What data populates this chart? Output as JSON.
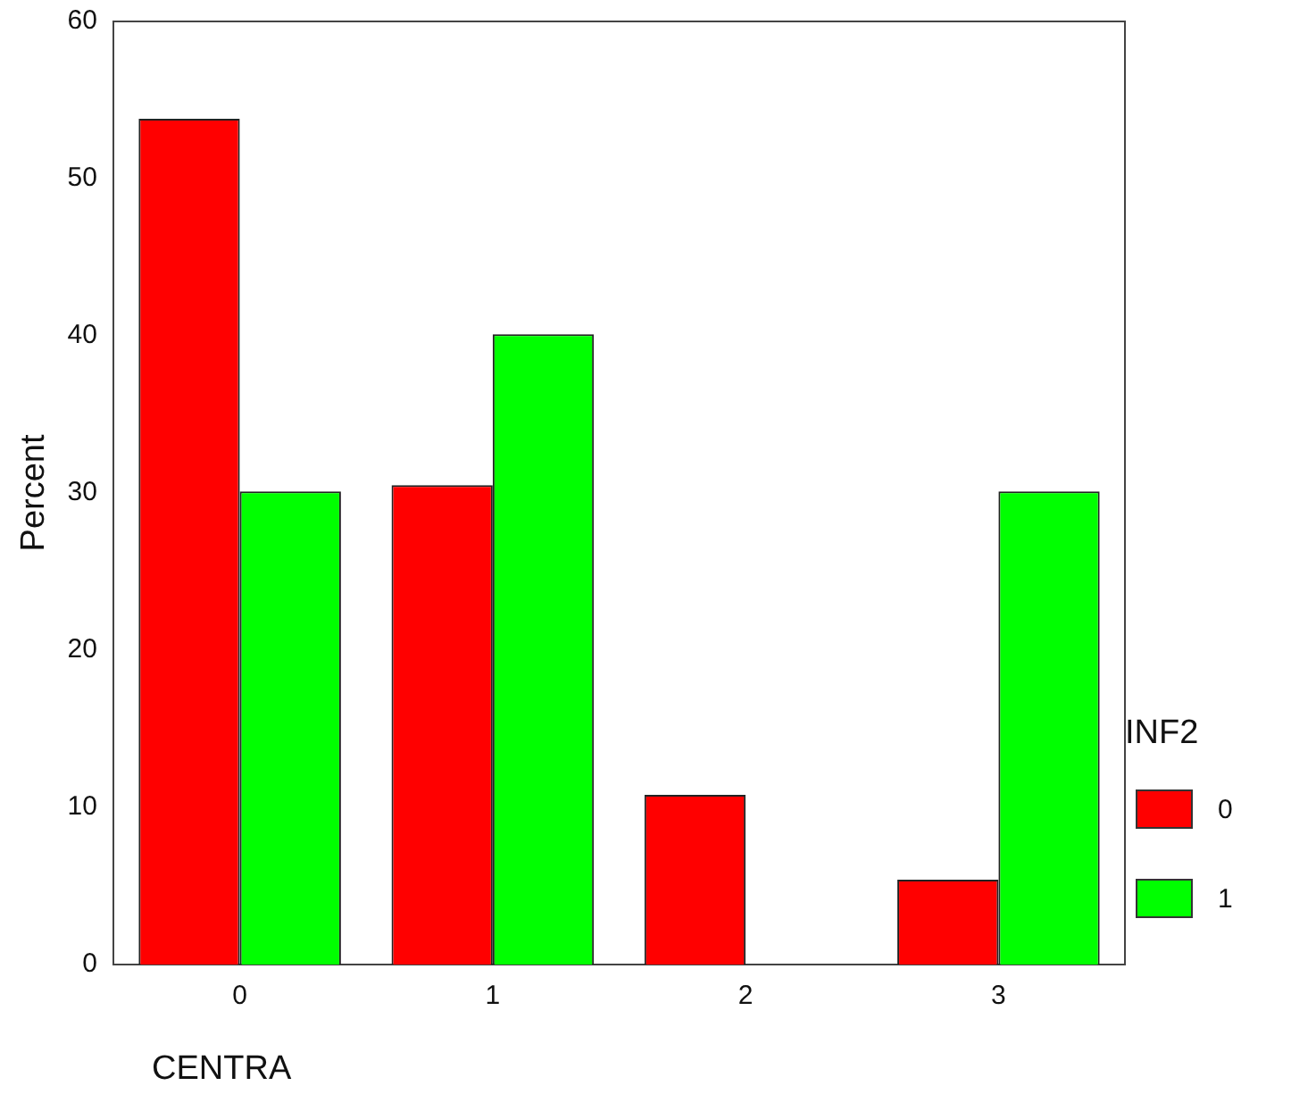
{
  "chart_data": {
    "type": "bar",
    "xlabel": "CENTRA",
    "ylabel": "Percent",
    "legend_title": "INF2",
    "legend": "right",
    "grid": false,
    "categories": [
      "0",
      "1",
      "2",
      "3"
    ],
    "series": [
      {
        "name": "0",
        "color": "#ff0000",
        "values": [
          53.8,
          30.5,
          10.8,
          5.4
        ]
      },
      {
        "name": "1",
        "color": "#00ff00",
        "values": [
          30.1,
          40.1,
          0,
          30.1
        ]
      }
    ],
    "ylim": [
      0,
      60
    ],
    "yticks": [
      0,
      10,
      20,
      30,
      40,
      50,
      60
    ]
  }
}
